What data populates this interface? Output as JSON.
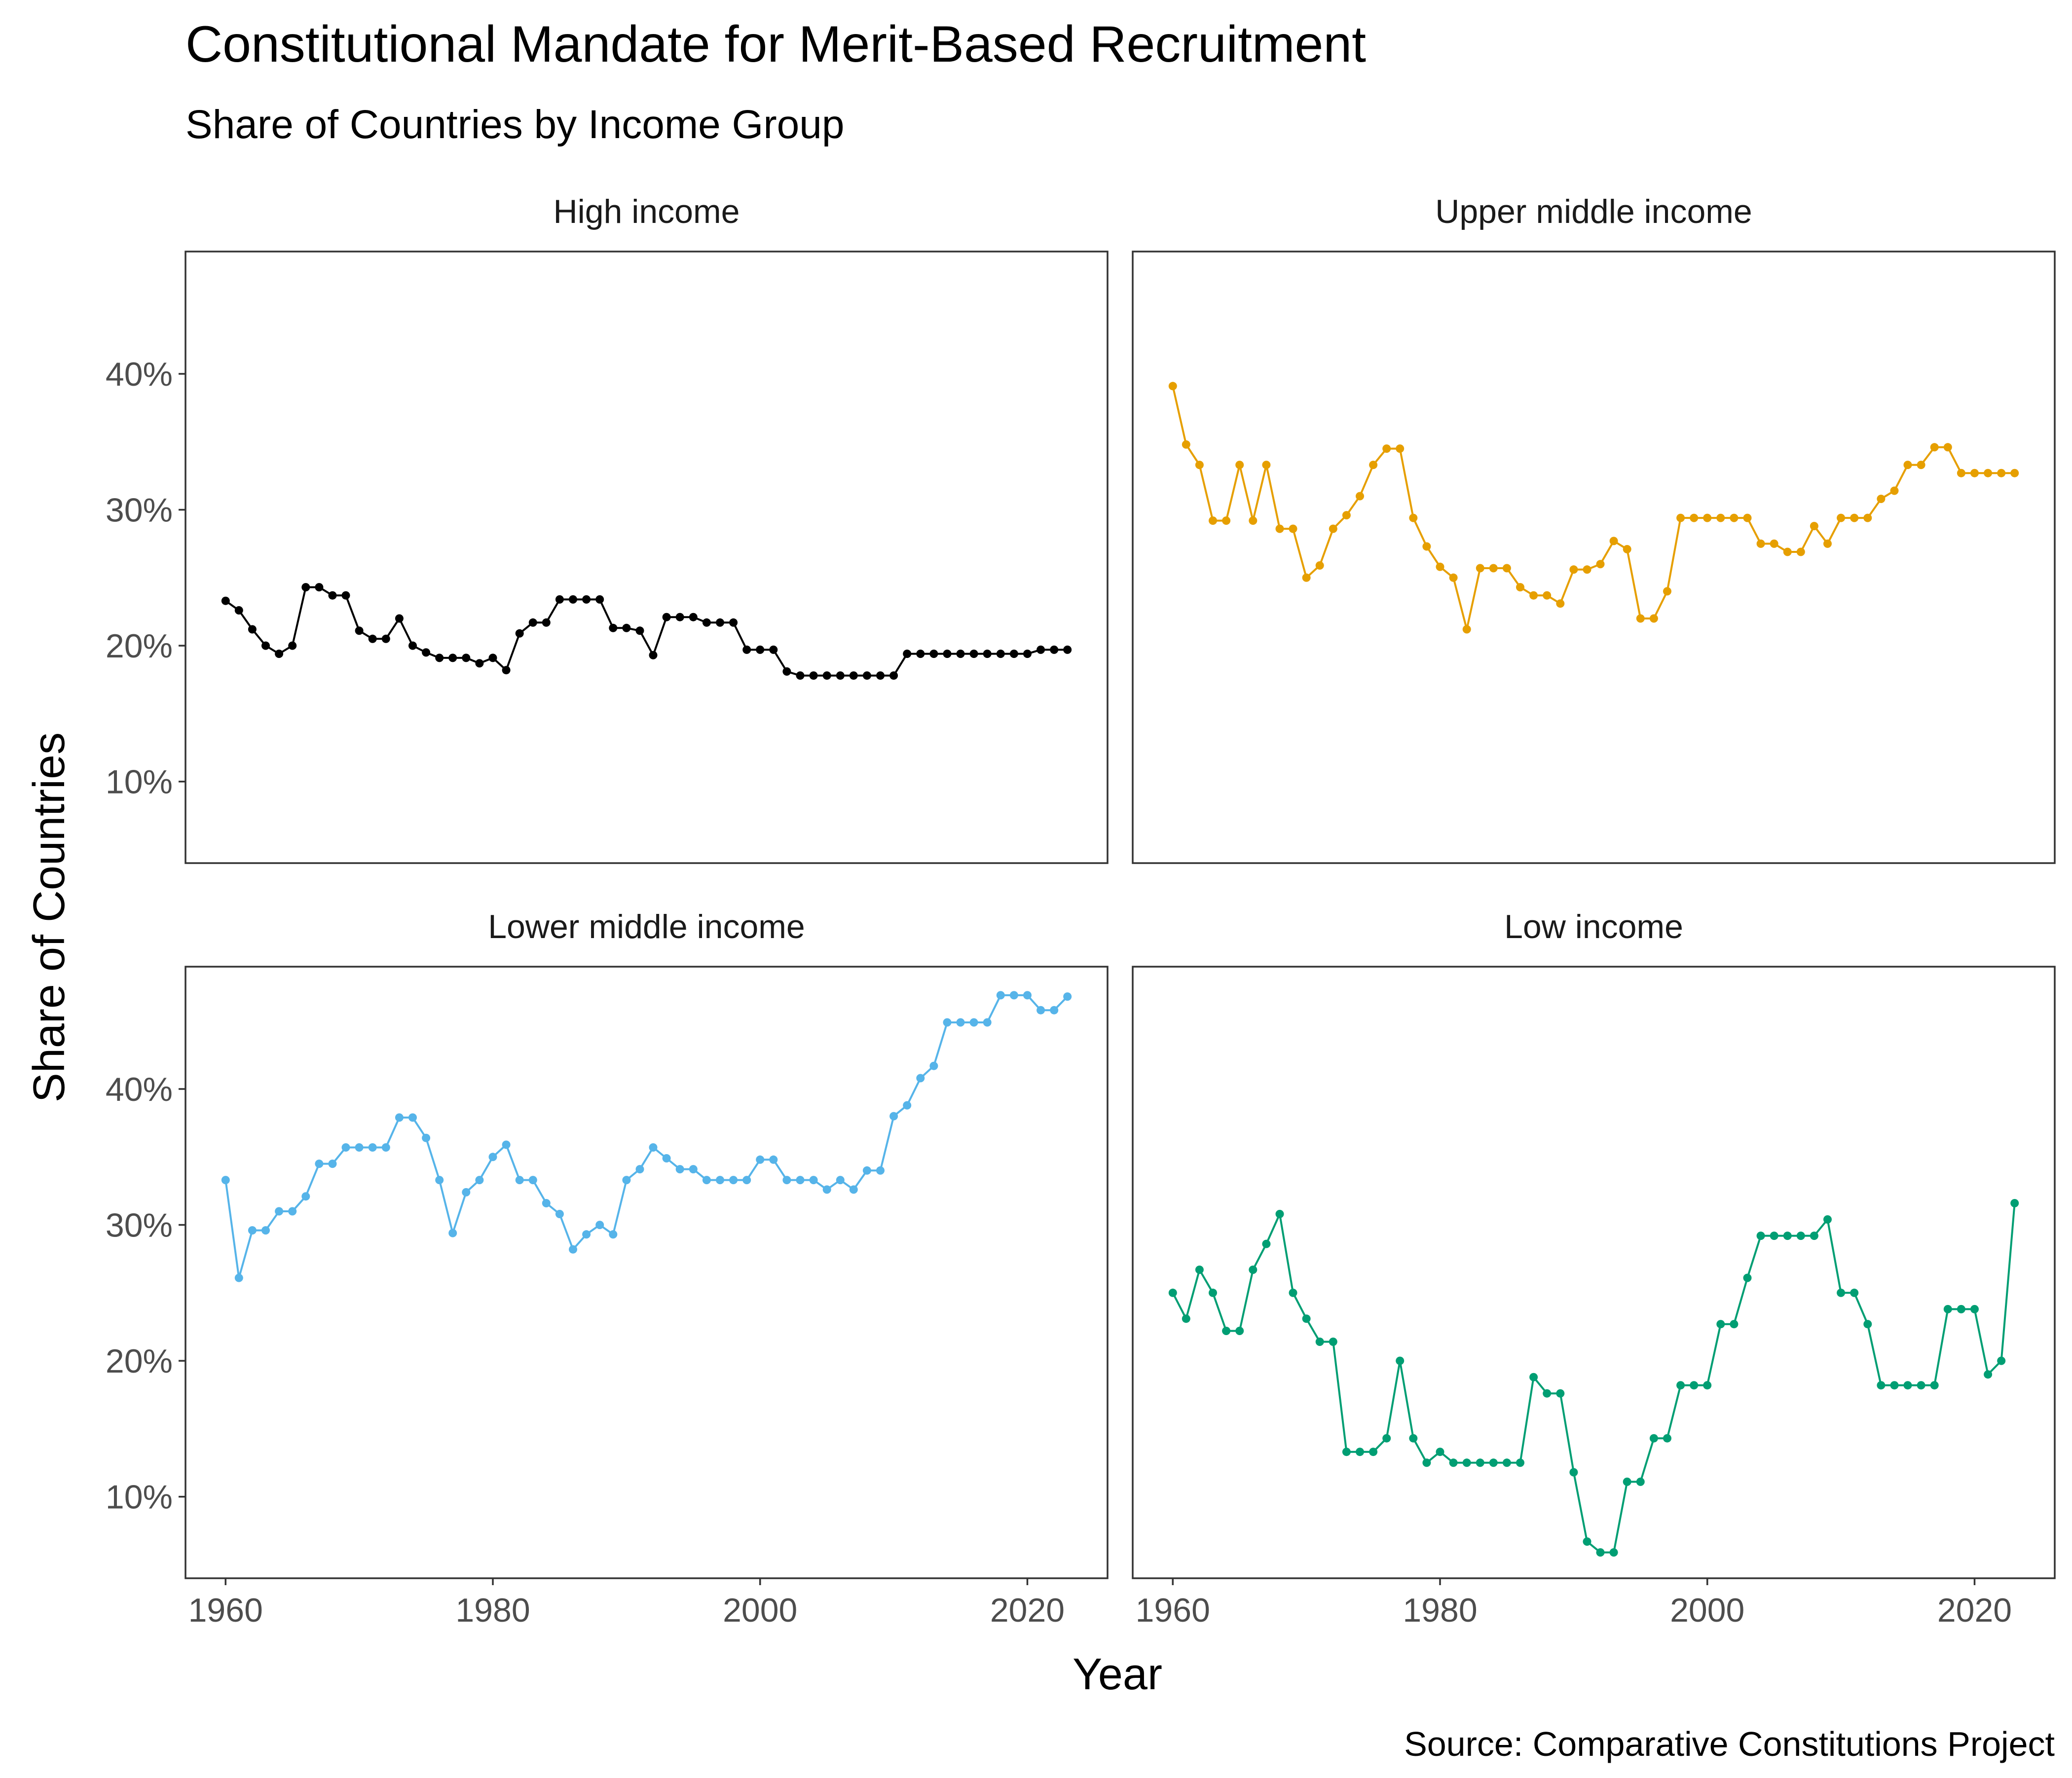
{
  "chart_data": {
    "type": "line",
    "title": "Constitutional Mandate for Merit-Based Recruitment",
    "subtitle": "Share of Countries by Income Group",
    "xlabel": "Year",
    "ylabel": "Share of Countries",
    "caption": "Source: Comparative Constitutions Project",
    "xlim": [
      1957,
      2026
    ],
    "ylim": [
      0.04,
      0.49
    ],
    "x_ticks": [
      1960,
      1980,
      2000,
      2020
    ],
    "x_tick_labels": [
      "1960",
      "1980",
      "2000",
      "2020"
    ],
    "y_ticks": [
      0.1,
      0.2,
      0.3,
      0.4
    ],
    "y_tick_labels": [
      "10%",
      "20%",
      "30%",
      "40%"
    ],
    "grid": false,
    "legend": "none",
    "facets": [
      {
        "name": "High income",
        "color": "#000000",
        "x": [
          1960,
          1961,
          1962,
          1963,
          1964,
          1965,
          1966,
          1967,
          1968,
          1969,
          1970,
          1971,
          1972,
          1973,
          1974,
          1975,
          1976,
          1977,
          1978,
          1979,
          1980,
          1981,
          1982,
          1983,
          1984,
          1985,
          1986,
          1987,
          1988,
          1989,
          1990,
          1991,
          1992,
          1993,
          1994,
          1995,
          1996,
          1997,
          1998,
          1999,
          2000,
          2001,
          2002,
          2003,
          2004,
          2005,
          2006,
          2007,
          2008,
          2009,
          2010,
          2011,
          2012,
          2013,
          2014,
          2015,
          2016,
          2017,
          2018,
          2019,
          2020,
          2021,
          2022,
          2023
        ],
        "y": [
          0.233,
          0.226,
          0.212,
          0.2,
          0.194,
          0.2,
          0.243,
          0.243,
          0.237,
          0.237,
          0.211,
          0.205,
          0.205,
          0.22,
          0.2,
          0.195,
          0.191,
          0.191,
          0.191,
          0.187,
          0.191,
          0.182,
          0.209,
          0.217,
          0.217,
          0.234,
          0.234,
          0.234,
          0.234,
          0.213,
          0.213,
          0.211,
          0.193,
          0.221,
          0.221,
          0.221,
          0.217,
          0.217,
          0.217,
          0.197,
          0.197,
          0.197,
          0.181,
          0.178,
          0.178,
          0.178,
          0.178,
          0.178,
          0.178,
          0.178,
          0.178,
          0.194,
          0.194,
          0.194,
          0.194,
          0.194,
          0.194,
          0.194,
          0.194,
          0.194,
          0.194,
          0.197,
          0.197,
          0.197
        ]
      },
      {
        "name": "Upper middle income",
        "color": "#E69F00",
        "x": [
          1960,
          1961,
          1962,
          1963,
          1964,
          1965,
          1966,
          1967,
          1968,
          1969,
          1970,
          1971,
          1972,
          1973,
          1974,
          1975,
          1976,
          1977,
          1978,
          1979,
          1980,
          1981,
          1982,
          1983,
          1984,
          1985,
          1986,
          1987,
          1988,
          1989,
          1990,
          1991,
          1992,
          1993,
          1994,
          1995,
          1996,
          1997,
          1998,
          1999,
          2000,
          2001,
          2002,
          2003,
          2004,
          2005,
          2006,
          2007,
          2008,
          2009,
          2010,
          2011,
          2012,
          2013,
          2014,
          2015,
          2016,
          2017,
          2018,
          2019,
          2020,
          2021,
          2022,
          2023
        ],
        "y": [
          0.391,
          0.348,
          0.333,
          0.292,
          0.292,
          0.333,
          0.292,
          0.333,
          0.286,
          0.286,
          0.25,
          0.259,
          0.286,
          0.296,
          0.31,
          0.333,
          0.345,
          0.345,
          0.294,
          0.273,
          0.258,
          0.25,
          0.212,
          0.257,
          0.257,
          0.257,
          0.243,
          0.237,
          0.237,
          0.231,
          0.256,
          0.256,
          0.26,
          0.277,
          0.271,
          0.22,
          0.22,
          0.24,
          0.294,
          0.294,
          0.294,
          0.294,
          0.294,
          0.294,
          0.275,
          0.275,
          0.269,
          0.269,
          0.288,
          0.275,
          0.294,
          0.294,
          0.294,
          0.308,
          0.314,
          0.333,
          0.333,
          0.346,
          0.346,
          0.327,
          0.327,
          0.327,
          0.327,
          0.327
        ]
      },
      {
        "name": "Lower middle income",
        "color": "#56B4E9",
        "x": [
          1960,
          1961,
          1962,
          1963,
          1964,
          1965,
          1966,
          1967,
          1968,
          1969,
          1970,
          1971,
          1972,
          1973,
          1974,
          1975,
          1976,
          1977,
          1978,
          1979,
          1980,
          1981,
          1982,
          1983,
          1984,
          1985,
          1986,
          1987,
          1988,
          1989,
          1990,
          1991,
          1992,
          1993,
          1994,
          1995,
          1996,
          1997,
          1998,
          1999,
          2000,
          2001,
          2002,
          2003,
          2004,
          2005,
          2006,
          2007,
          2008,
          2009,
          2010,
          2011,
          2012,
          2013,
          2014,
          2015,
          2016,
          2017,
          2018,
          2019,
          2020,
          2021,
          2022,
          2023
        ],
        "y": [
          0.333,
          0.261,
          0.296,
          0.296,
          0.31,
          0.31,
          0.321,
          0.345,
          0.345,
          0.357,
          0.357,
          0.357,
          0.357,
          0.379,
          0.379,
          0.364,
          0.333,
          0.294,
          0.324,
          0.333,
          0.35,
          0.359,
          0.333,
          0.333,
          0.316,
          0.308,
          0.282,
          0.293,
          0.3,
          0.293,
          0.333,
          0.341,
          0.357,
          0.349,
          0.341,
          0.341,
          0.333,
          0.333,
          0.333,
          0.333,
          0.348,
          0.348,
          0.333,
          0.333,
          0.333,
          0.326,
          0.333,
          0.326,
          0.34,
          0.34,
          0.38,
          0.388,
          0.408,
          0.417,
          0.449,
          0.449,
          0.449,
          0.449,
          0.469,
          0.469,
          0.469,
          0.458,
          0.458,
          0.468
        ]
      },
      {
        "name": "Low income",
        "color": "#009E73",
        "x": [
          1960,
          1961,
          1962,
          1963,
          1964,
          1965,
          1966,
          1967,
          1968,
          1969,
          1970,
          1971,
          1972,
          1973,
          1974,
          1975,
          1976,
          1977,
          1978,
          1979,
          1980,
          1981,
          1982,
          1983,
          1984,
          1985,
          1986,
          1987,
          1988,
          1989,
          1990,
          1991,
          1992,
          1993,
          1994,
          1995,
          1996,
          1997,
          1998,
          1999,
          2000,
          2001,
          2002,
          2003,
          2004,
          2005,
          2006,
          2007,
          2008,
          2009,
          2010,
          2011,
          2012,
          2013,
          2014,
          2015,
          2016,
          2017,
          2018,
          2019,
          2020,
          2021,
          2022,
          2023
        ],
        "y": [
          0.25,
          0.231,
          0.267,
          0.25,
          0.222,
          0.222,
          0.267,
          0.286,
          0.308,
          0.25,
          0.231,
          0.214,
          0.214,
          0.133,
          0.133,
          0.133,
          0.143,
          0.2,
          0.143,
          0.125,
          0.133,
          0.125,
          0.125,
          0.125,
          0.125,
          0.125,
          0.125,
          0.188,
          0.176,
          0.176,
          0.118,
          0.067,
          0.059,
          0.059,
          0.111,
          0.111,
          0.143,
          0.143,
          0.182,
          0.182,
          0.182,
          0.227,
          0.227,
          0.261,
          0.292,
          0.292,
          0.292,
          0.292,
          0.292,
          0.304,
          0.25,
          0.25,
          0.227,
          0.182,
          0.182,
          0.182,
          0.182,
          0.182,
          0.238,
          0.238,
          0.238,
          0.19,
          0.2,
          0.316
        ]
      }
    ]
  }
}
